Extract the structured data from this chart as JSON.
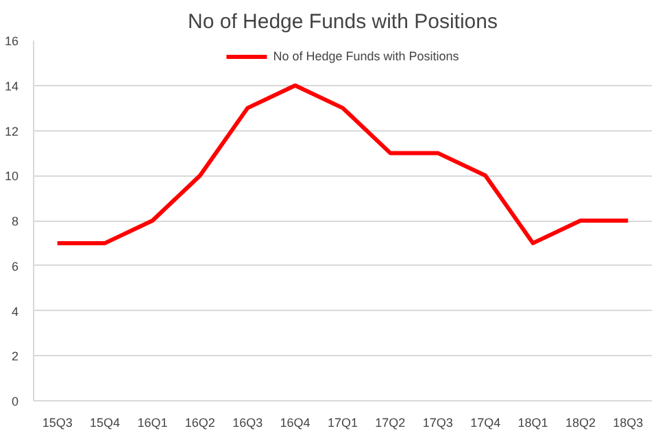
{
  "chart_data": {
    "type": "line",
    "title": "No of Hedge Funds with Positions",
    "categories": [
      "15Q3",
      "15Q4",
      "16Q1",
      "16Q2",
      "16Q3",
      "16Q4",
      "17Q1",
      "17Q2",
      "17Q3",
      "17Q4",
      "18Q1",
      "18Q2",
      "18Q3"
    ],
    "series": [
      {
        "name": "No of Hedge Funds with Positions",
        "color": "#ff0000",
        "values": [
          7,
          7,
          8,
          10,
          13,
          14,
          13,
          11,
          11,
          10,
          7,
          8,
          8
        ]
      }
    ],
    "ylim": [
      0,
      16
    ],
    "yticks": [
      0,
      2,
      4,
      6,
      8,
      10,
      12,
      14,
      16
    ],
    "grid": "y",
    "legend": "top",
    "marker": "none",
    "line_style": "solid"
  }
}
